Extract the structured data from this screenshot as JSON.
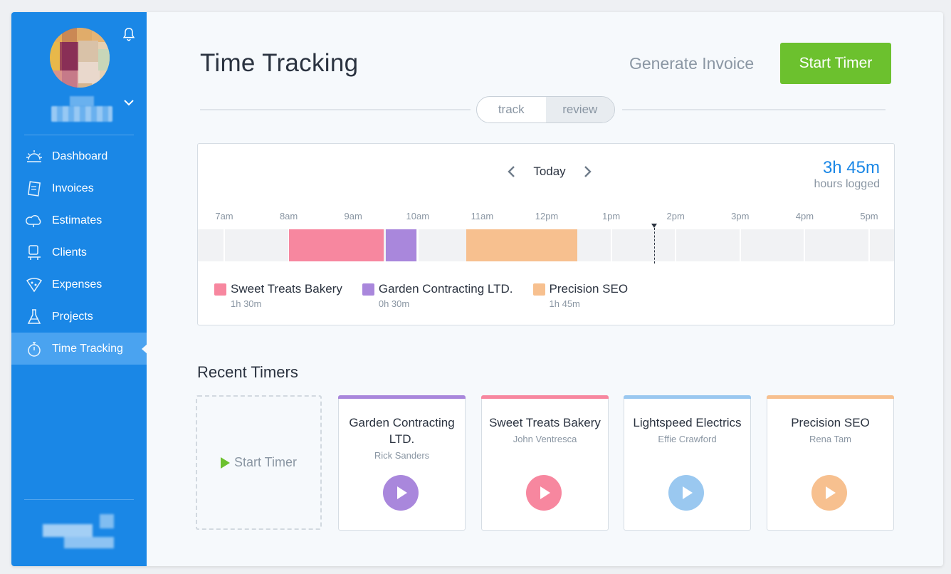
{
  "sidebar": {
    "items": [
      {
        "label": "Dashboard",
        "icon": "dashboard-icon"
      },
      {
        "label": "Invoices",
        "icon": "invoice-icon"
      },
      {
        "label": "Estimates",
        "icon": "estimate-icon"
      },
      {
        "label": "Clients",
        "icon": "clients-icon"
      },
      {
        "label": "Expenses",
        "icon": "expenses-icon"
      },
      {
        "label": "Projects",
        "icon": "projects-icon"
      },
      {
        "label": "Time Tracking",
        "icon": "stopwatch-icon",
        "active": true
      }
    ]
  },
  "header": {
    "title": "Time Tracking",
    "generate_invoice": "Generate Invoice",
    "start_timer": "Start Timer"
  },
  "toggle": {
    "track": "track",
    "review": "review",
    "selected": "review"
  },
  "summary": {
    "date_label": "Today",
    "hours_value": "3h 45m",
    "hours_label": "hours logged"
  },
  "timeline": {
    "hours": [
      "7am",
      "8am",
      "9am",
      "10am",
      "11am",
      "12pm",
      "1pm",
      "2pm",
      "3pm",
      "4pm",
      "5pm"
    ],
    "entries": [
      {
        "client": "Sweet Treats Bakery",
        "start": "8:00",
        "end": "9:30",
        "color": "#f7879f"
      },
      {
        "client": "Garden Contracting LTD.",
        "start": "9:30",
        "end": "10:00",
        "color": "#a987dc"
      },
      {
        "client": "Precision SEO",
        "start": "10:45",
        "end": "12:30",
        "color": "#f7c08f"
      }
    ],
    "now": "1:40"
  },
  "legend": [
    {
      "name": "Sweet Treats Bakery",
      "duration": "1h 30m",
      "color": "#f7879f"
    },
    {
      "name": "Garden Contracting LTD.",
      "duration": "0h 30m",
      "color": "#a987dc"
    },
    {
      "name": "Precision SEO",
      "duration": "1h 45m",
      "color": "#f7c08f"
    }
  ],
  "recent": {
    "title": "Recent Timers",
    "new_timer_label": "Start Timer",
    "timers": [
      {
        "client": "Garden Contracting LTD.",
        "person": "Rick Sanders",
        "color": "#a987dc"
      },
      {
        "client": "Sweet Treats Bakery",
        "person": "John Ventresca",
        "color": "#f7879f"
      },
      {
        "client": "Lightspeed Electrics",
        "person": "Effie Crawford",
        "color": "#9ac8f0"
      },
      {
        "client": "Precision SEO",
        "person": "Rena Tam",
        "color": "#f7c08f"
      }
    ]
  }
}
